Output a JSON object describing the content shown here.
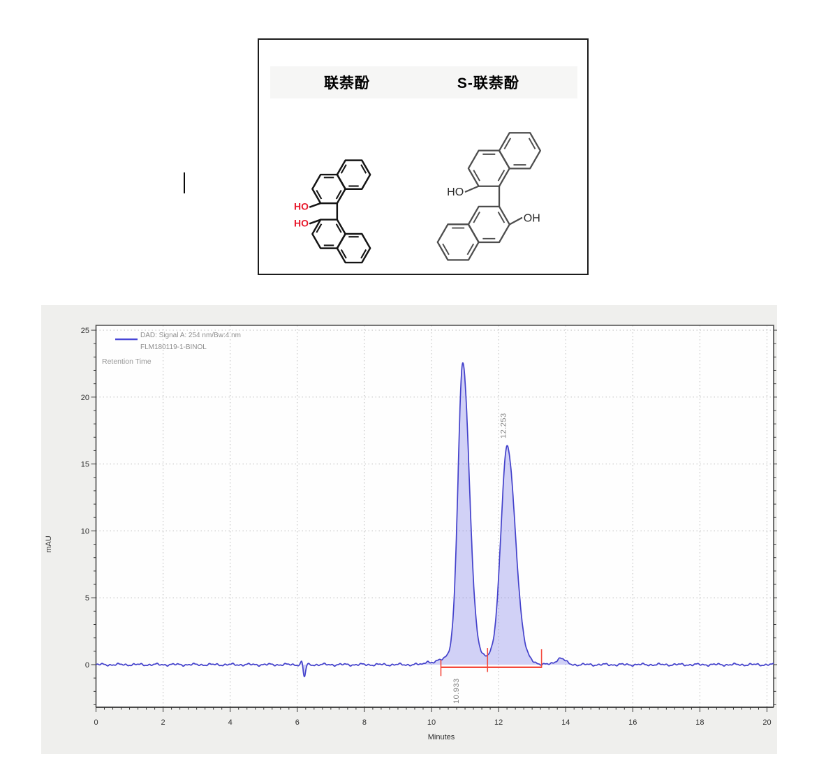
{
  "structure_panel": {
    "left_title": "联萘酚",
    "right_title": "S-联萘酚",
    "hydroxyl_ho": "HO",
    "hydroxyl_oh": "OH",
    "accent_red": "#e8192c"
  },
  "chart_data": {
    "type": "line",
    "title": "",
    "xlabel": "Minutes",
    "ylabel": "mAU",
    "xlim": [
      0,
      20.2
    ],
    "ylim": [
      -3.2,
      25.5
    ],
    "xticks": [
      0,
      2,
      4,
      6,
      8,
      10,
      12,
      14,
      16,
      18,
      20
    ],
    "yticks": [
      0,
      5,
      10,
      15,
      20,
      25
    ],
    "x_minor_step": 0.25,
    "y_minor_step": 1,
    "grid": "dotted",
    "legend_position": "top-left",
    "legend": [
      "DAD: Signal A: 254 nm/Bw:4 nm",
      "FLM180119-1-BINOL"
    ],
    "annotation": "Retention Time",
    "trace_color": "#4341cb",
    "fill_color": "rgba(127,127,232,0.35)",
    "baseline_color": "#f4493d",
    "series": [
      {
        "name": "FLM180119-1-BINOL",
        "peaks": [
          {
            "retention_time": 10.933,
            "label": "10.933",
            "height_mAU": 22.6,
            "sigma_left": 0.14,
            "sigma_right": 0.19
          },
          {
            "retention_time": 12.253,
            "label": "12.253",
            "height_mAU": 16.3,
            "sigma_left": 0.18,
            "sigma_right": 0.24
          }
        ],
        "minor_features": [
          {
            "time": 6.14,
            "height_mAU": 0.3,
            "sigma": 0.03
          },
          {
            "time": 6.21,
            "height_mAU": -0.95,
            "sigma": 0.035
          },
          {
            "time": 9.87,
            "height_mAU": 0.25,
            "sigma": 0.05
          },
          {
            "time": 13.85,
            "height_mAU": 0.5,
            "sigma": 0.13
          }
        ],
        "integration_baseline": {
          "start_min": 10.28,
          "end_min": 13.28,
          "level_mAU": -0.2,
          "tick_times": [
            10.28,
            11.67,
            13.28
          ]
        }
      }
    ]
  }
}
